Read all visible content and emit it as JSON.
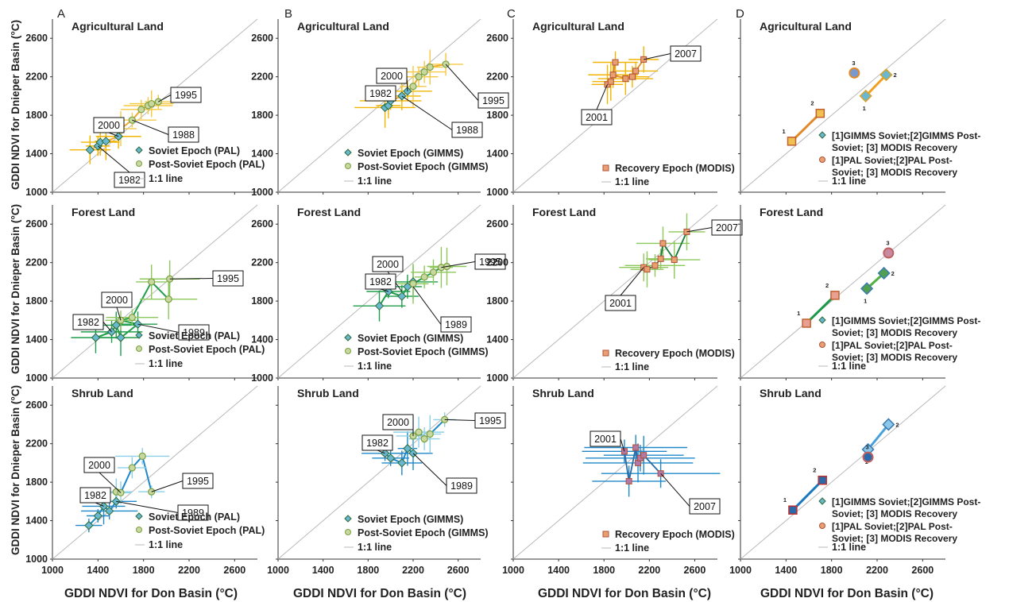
{
  "figure": {
    "column_labels": [
      "A",
      "B",
      "C",
      "D"
    ],
    "y_label": "GDDI NDVI for Dnieper Basin (°C)",
    "x_label": "GDDI NDVI for Don Basin (°C)"
  },
  "colors": {
    "agri_soviet": "#f2b400",
    "agri_post": "#f5c842",
    "agri_line": "#f0a830",
    "forest_soviet": "#1f9e4a",
    "forest_post": "#8cc85a",
    "shrub_soviet": "#1f88c8",
    "shrub_post": "#8cd0e8",
    "modis_agri": "#e08a2a",
    "modis_forest": "#1a7a38",
    "modis_shrub": "#2a6aa8",
    "diamond_fill": "#6ab8d0",
    "circle_fill": "#c8d8a0",
    "square_fill": "#e89a5a",
    "identity": "#b8b8b8"
  },
  "chart_data": [
    {
      "id": "A1",
      "type": "scatter",
      "title": "Agricultural Land",
      "xlim": [
        1000,
        2800
      ],
      "ylim": [
        1000,
        2800
      ],
      "xticks": [],
      "yticks": [
        "1000",
        "1400",
        "1800",
        "2200",
        "2600"
      ],
      "series": [
        {
          "name": "Soviet Epoch (PAL)",
          "x": [
            1330,
            1400,
            1420,
            1470,
            1580
          ],
          "y": [
            1440,
            1480,
            1520,
            1530,
            1580
          ]
        },
        {
          "name": "Post-Soviet Epoch (PAL)",
          "x": [
            1600,
            1700,
            1780,
            1840,
            1870,
            1930
          ],
          "y": [
            1660,
            1750,
            1860,
            1900,
            1920,
            1940
          ]
        },
        {
          "name": "1:1 line",
          "x": [
            1000,
            2800
          ],
          "y": [
            1000,
            2800
          ]
        }
      ],
      "annotations": [
        {
          "text": "1995",
          "x": 1930,
          "y": 1940
        },
        {
          "text": "2000",
          "x": 1580,
          "y": 1580
        },
        {
          "text": "1988",
          "x": 1700,
          "y": 1750
        },
        {
          "text": "1982",
          "x": 1400,
          "y": 1480
        }
      ]
    },
    {
      "id": "B1",
      "type": "scatter",
      "title": "Agricultural Land",
      "xlim": [
        1000,
        2800
      ],
      "ylim": [
        1000,
        2800
      ],
      "xticks": [],
      "yticks": [
        "1000",
        "1400",
        "1800",
        "2200",
        "2600"
      ],
      "series": [
        {
          "name": "Soviet Epoch (GIMMS)",
          "x": [
            1950,
            1980,
            2000,
            2100,
            2150
          ],
          "y": [
            1880,
            1900,
            1950,
            2000,
            2050
          ]
        },
        {
          "name": "Post-Soviet Epoch (GIMMS)",
          "x": [
            2200,
            2250,
            2300,
            2350,
            2490
          ],
          "y": [
            2100,
            2200,
            2250,
            2300,
            2330
          ]
        },
        {
          "name": "1:1 line",
          "x": [
            1000,
            2800
          ],
          "y": [
            1000,
            2800
          ]
        }
      ],
      "annotations": [
        {
          "text": "2000",
          "x": 2150,
          "y": 2050
        },
        {
          "text": "1982",
          "x": 2000,
          "y": 1950
        },
        {
          "text": "1995",
          "x": 2490,
          "y": 2330
        },
        {
          "text": "1988",
          "x": 2100,
          "y": 2000
        }
      ]
    },
    {
      "id": "C1",
      "type": "scatter",
      "title": "Agricultural Land",
      "xlim": [
        1000,
        2800
      ],
      "ylim": [
        1000,
        2800
      ],
      "xticks": [],
      "yticks": [
        "1000",
        "1400",
        "1800",
        "2200",
        "2600"
      ],
      "series": [
        {
          "name": "Recovery Epoch (MODIS)",
          "x": [
            1830,
            1860,
            1900,
            1880,
            1990,
            2050,
            2080,
            2150
          ],
          "y": [
            2120,
            2150,
            2350,
            2220,
            2180,
            2200,
            2260,
            2380
          ]
        },
        {
          "name": "1:1 line",
          "x": [
            1000,
            2800
          ],
          "y": [
            1000,
            2800
          ]
        }
      ],
      "annotations": [
        {
          "text": "2007",
          "x": 2150,
          "y": 2380
        },
        {
          "text": "2001",
          "x": 1830,
          "y": 2120
        }
      ]
    },
    {
      "id": "D1",
      "type": "scatter",
      "title": "Agricultural Land",
      "xlim": [
        1000,
        2800
      ],
      "ylim": [
        1000,
        2800
      ],
      "xticks": [],
      "yticks": [],
      "series": [
        {
          "name": "[1]GIMMS Soviet;[2]GIMMS Post-Soviet; [3] MODIS Recovery",
          "x": [
            2100,
            2280,
            2000
          ],
          "y": [
            2000,
            2220,
            2240
          ]
        },
        {
          "name": "[1]PAL Soviet;[2]PAL Post-Soviet; [3] MODIS Recovery",
          "x": [
            1450,
            1700,
            2000
          ],
          "y": [
            1530,
            1820,
            2240
          ]
        },
        {
          "name": "1:1 line",
          "x": [
            1000,
            2800
          ],
          "y": [
            1000,
            2800
          ]
        }
      ]
    },
    {
      "id": "A2",
      "type": "scatter",
      "title": "Forest Land",
      "xlim": [
        1000,
        2800
      ],
      "ylim": [
        1000,
        2800
      ],
      "xticks": [],
      "yticks": [
        "1000",
        "1400",
        "1800",
        "2200",
        "2600"
      ],
      "series": [
        {
          "name": "Soviet Epoch (PAL)",
          "x": [
            1380,
            1520,
            1560,
            1600,
            1750
          ],
          "y": [
            1420,
            1480,
            1550,
            1420,
            1560
          ]
        },
        {
          "name": "Post-Soviet Epoch (PAL)",
          "x": [
            1600,
            1700,
            1870,
            2020,
            2030
          ],
          "y": [
            1600,
            1630,
            2000,
            1820,
            2030
          ]
        },
        {
          "name": "1:1 line",
          "x": [
            1000,
            2800
          ],
          "y": [
            1000,
            2800
          ]
        }
      ],
      "annotations": [
        {
          "text": "1995",
          "x": 2030,
          "y": 2030
        },
        {
          "text": "2000",
          "x": 1600,
          "y": 1600
        },
        {
          "text": "1982",
          "x": 1520,
          "y": 1480
        },
        {
          "text": "1989",
          "x": 1750,
          "y": 1560
        }
      ]
    },
    {
      "id": "B2",
      "type": "scatter",
      "title": "Forest Land",
      "xlim": [
        1000,
        2800
      ],
      "ylim": [
        1000,
        2800
      ],
      "xticks": [],
      "yticks": [
        "1000",
        "1400",
        "1800",
        "2200",
        "2600"
      ],
      "series": [
        {
          "name": "Soviet Epoch (GIMMS)",
          "x": [
            1900,
            1980,
            2100,
            2150,
            2200
          ],
          "y": [
            1750,
            1900,
            1850,
            1950,
            2000
          ]
        },
        {
          "name": "Post-Soviet Epoch (GIMMS)",
          "x": [
            2200,
            2300,
            2380,
            2450,
            2500
          ],
          "y": [
            1980,
            2050,
            2100,
            2150,
            2160
          ]
        },
        {
          "name": "1:1 line",
          "x": [
            1000,
            2800
          ],
          "y": [
            1000,
            2800
          ]
        }
      ],
      "annotations": [
        {
          "text": "2000",
          "x": 2100,
          "y": 1900
        },
        {
          "text": "1982",
          "x": 1980,
          "y": 1900
        },
        {
          "text": "1995",
          "x": 2450,
          "y": 2150
        },
        {
          "text": "1989",
          "x": 2200,
          "y": 1950
        }
      ]
    },
    {
      "id": "C2",
      "type": "scatter",
      "title": "Forest Land",
      "xlim": [
        1000,
        2800
      ],
      "ylim": [
        1000,
        2800
      ],
      "xticks": [],
      "yticks": [
        "1000",
        "1400",
        "1800",
        "2200",
        "2600"
      ],
      "series": [
        {
          "name": "Recovery Epoch (MODIS)",
          "x": [
            2150,
            2180,
            2250,
            2300,
            2320,
            2420,
            2530
          ],
          "y": [
            2150,
            2130,
            2170,
            2240,
            2400,
            2230,
            2520
          ]
        },
        {
          "name": "1:1 line",
          "x": [
            1000,
            2800
          ],
          "y": [
            1000,
            2800
          ]
        }
      ],
      "annotations": [
        {
          "text": "2007",
          "x": 2530,
          "y": 2520
        },
        {
          "text": "2001",
          "x": 2150,
          "y": 2150
        }
      ]
    },
    {
      "id": "D2",
      "type": "scatter",
      "title": "Forest Land",
      "xlim": [
        1000,
        2800
      ],
      "ylim": [
        1000,
        2800
      ],
      "xticks": [],
      "yticks": [],
      "series": [
        {
          "name": "[1]GIMMS Soviet;[2]GIMMS Post-Soviet; [3] MODIS Recovery",
          "x": [
            2110,
            2260,
            2300
          ],
          "y": [
            1930,
            2090,
            2300
          ]
        },
        {
          "name": "[1]PAL Soviet;[2]PAL Post-Soviet; [3] MODIS Recovery",
          "x": [
            1580,
            1830,
            2300
          ],
          "y": [
            1570,
            1860,
            2300
          ]
        },
        {
          "name": "1:1 line",
          "x": [
            1000,
            2800
          ],
          "y": [
            1000,
            2800
          ]
        }
      ]
    },
    {
      "id": "A3",
      "type": "scatter",
      "title": "Shrub Land",
      "xlim": [
        1000,
        2800
      ],
      "ylim": [
        1000,
        2800
      ],
      "xticks": [
        "1000",
        "1400",
        "1800",
        "2200",
        "2600"
      ],
      "yticks": [
        "1000",
        "1400",
        "1800",
        "2200",
        "2600"
      ],
      "series": [
        {
          "name": "Soviet Epoch (PAL)",
          "x": [
            1320,
            1400,
            1450,
            1500,
            1560
          ],
          "y": [
            1350,
            1450,
            1550,
            1500,
            1600
          ]
        },
        {
          "name": "Post-Soviet Epoch (PAL)",
          "x": [
            1560,
            1600,
            1700,
            1790,
            1870
          ],
          "y": [
            1700,
            1690,
            1950,
            2070,
            1700
          ]
        },
        {
          "name": "1:1 line",
          "x": [
            1000,
            2800
          ],
          "y": [
            1000,
            2800
          ]
        }
      ],
      "annotations": [
        {
          "text": "2000",
          "x": 1600,
          "y": 1690
        },
        {
          "text": "1982",
          "x": 1450,
          "y": 1550
        },
        {
          "text": "1995",
          "x": 1870,
          "y": 1700
        },
        {
          "text": "1989",
          "x": 1560,
          "y": 1600
        }
      ]
    },
    {
      "id": "B3",
      "type": "scatter",
      "title": "Shrub Land",
      "xlim": [
        1000,
        2800
      ],
      "ylim": [
        1000,
        2800
      ],
      "xticks": [
        "1000",
        "1400",
        "1800",
        "2200",
        "2600"
      ],
      "yticks": [],
      "series": [
        {
          "name": "Soviet Epoch (GIMMS)",
          "x": [
            1950,
            2000,
            2100,
            2150,
            2200
          ],
          "y": [
            2100,
            2050,
            2000,
            2150,
            2100
          ]
        },
        {
          "name": "Post-Soviet Epoch (GIMMS)",
          "x": [
            2200,
            2250,
            2300,
            2350,
            2480
          ],
          "y": [
            2280,
            2320,
            2250,
            2300,
            2450
          ]
        },
        {
          "name": "1:1 line",
          "x": [
            1000,
            2800
          ],
          "y": [
            1000,
            2800
          ]
        }
      ],
      "annotations": [
        {
          "text": "2000",
          "x": 2200,
          "y": 2280
        },
        {
          "text": "1982",
          "x": 1950,
          "y": 2100
        },
        {
          "text": "1995",
          "x": 2480,
          "y": 2450
        },
        {
          "text": "1989",
          "x": 2200,
          "y": 2100
        }
      ]
    },
    {
      "id": "C3",
      "type": "scatter",
      "title": "Shrub Land",
      "xlim": [
        1000,
        2800
      ],
      "ylim": [
        1000,
        2800
      ],
      "xticks": [
        "1000",
        "1400",
        "1800",
        "2200",
        "2600"
      ],
      "yticks": [],
      "series": [
        {
          "name": "Recovery Epoch (MODIS)",
          "x": [
            1980,
            2020,
            2080,
            2100,
            2120,
            2150,
            2300
          ],
          "y": [
            2120,
            1810,
            2160,
            2000,
            2050,
            2080,
            1890
          ]
        },
        {
          "name": "1:1 line",
          "x": [
            1000,
            2800
          ],
          "y": [
            1000,
            2800
          ]
        }
      ],
      "annotations": [
        {
          "text": "2001",
          "x": 1980,
          "y": 2120
        },
        {
          "text": "2007",
          "x": 2300,
          "y": 1890
        }
      ]
    },
    {
      "id": "D3",
      "type": "scatter",
      "title": "Shrub Land",
      "xlim": [
        1000,
        2800
      ],
      "ylim": [
        1000,
        2800
      ],
      "xticks": [
        "1000",
        "1400",
        "1800",
        "2200",
        "2600"
      ],
      "yticks": [],
      "series": [
        {
          "name": "[1]GIMMS Soviet;[2]GIMMS Post-Soviet; [3] MODIS Recovery",
          "x": [
            2120,
            2300,
            2120
          ],
          "y": [
            2140,
            2400,
            2060
          ]
        },
        {
          "name": "[1]PAL Soviet;[2]PAL Post-Soviet; [3] MODIS Recovery",
          "x": [
            1460,
            1720,
            2120
          ],
          "y": [
            1510,
            1820,
            2060
          ]
        },
        {
          "name": "1:1 line",
          "x": [
            1000,
            2800
          ],
          "y": [
            1000,
            2800
          ]
        }
      ]
    }
  ]
}
